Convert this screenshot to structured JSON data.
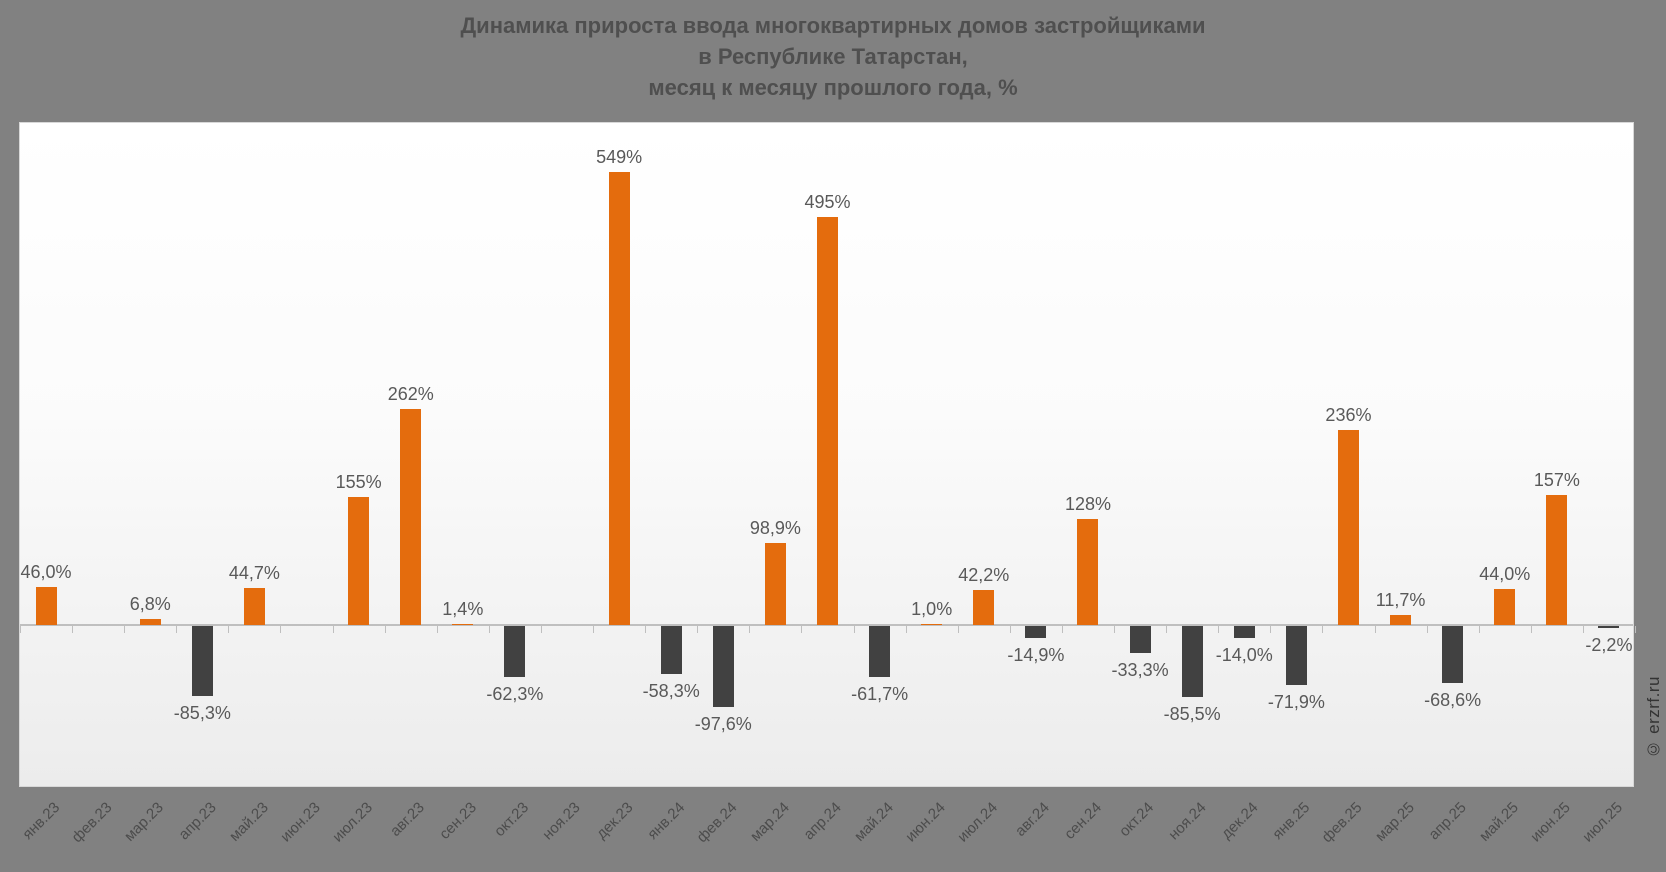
{
  "title": {
    "line1": "Динамика прироста ввода многоквартирных домов застройщиками",
    "line2": "в Республике Татарстан,",
    "line3": "месяц к месяцу прошлого года, %"
  },
  "watermark": "© erzrf.ru",
  "colors": {
    "background": "#818181",
    "positive_bar": "#e46c0d",
    "negative_bar": "#414141",
    "axis": "#bfbfbf",
    "value_label": "#595959",
    "axis_label": "#4c4c4c",
    "title_text": "#4f4f4f"
  },
  "chart_data": {
    "type": "bar",
    "title": "Динамика прироста ввода многоквартирных домов застройщиками в Республике Татарстан, месяц к месяцу прошлого года, %",
    "ylabel": "%",
    "ylim": [
      -200,
      610
    ],
    "grid": false,
    "legend": "none",
    "bar_color_rule": "orange for positive values, dark gray for negative values",
    "categories": [
      "янв.23",
      "фев.23",
      "мар.23",
      "апр.23",
      "май.23",
      "июн.23",
      "июл.23",
      "авг.23",
      "сен.23",
      "окт.23",
      "ноя.23",
      "дек.23",
      "янв.24",
      "фев.24",
      "мар.24",
      "апр.24",
      "май.24",
      "июн.24",
      "июл.24",
      "авг.24",
      "сен.24",
      "окт.24",
      "ноя.24",
      "дек.24",
      "янв.25",
      "фев.25",
      "мар.25",
      "апр.25",
      "май.25",
      "июн.25",
      "июл.25"
    ],
    "values": [
      46.0,
      null,
      6.8,
      -85.3,
      44.7,
      null,
      155,
      262,
      1.4,
      -62.3,
      null,
      549,
      -58.3,
      -97.6,
      98.9,
      495,
      -61.7,
      1.0,
      42.2,
      -14.9,
      128,
      -33.3,
      -85.5,
      -14.0,
      -71.9,
      236,
      11.7,
      -68.6,
      44.0,
      157,
      -2.2
    ],
    "value_labels": [
      "46,0%",
      null,
      "6,8%",
      "-85,3%",
      "44,7%",
      null,
      "155%",
      "262%",
      "1,4%",
      "-62,3%",
      null,
      "549%",
      "-58,3%",
      "-97,6%",
      "98,9%",
      "495%",
      "-61,7%",
      "1,0%",
      "42,2%",
      "-14,9%",
      "128%",
      "-33,3%",
      "-85,5%",
      "-14,0%",
      "-71,9%",
      "236%",
      "11,7%",
      "-68,6%",
      "44,0%",
      "157%",
      "-2,2%"
    ]
  }
}
